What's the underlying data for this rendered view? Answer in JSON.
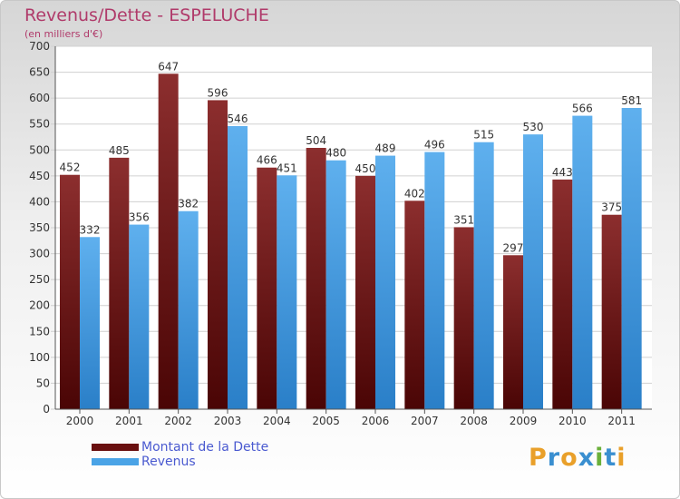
{
  "chart_data": {
    "type": "bar",
    "title": "Revenus/Dette - ESPELUCHE",
    "subtitle": "(en milliers d'€)",
    "categories": [
      "2000",
      "2001",
      "2002",
      "2003",
      "2004",
      "2005",
      "2006",
      "2007",
      "2008",
      "2009",
      "2010",
      "2011"
    ],
    "series": [
      {
        "name": "Montant de la Dette",
        "color": "#7a1a1a",
        "values": [
          452,
          485,
          647,
          596,
          466,
          504,
          450,
          402,
          351,
          297,
          443,
          375
        ]
      },
      {
        "name": "Revenus",
        "color": "#4aa3e6",
        "values": [
          332,
          356,
          382,
          546,
          451,
          480,
          489,
          496,
          515,
          530,
          566,
          581
        ]
      }
    ],
    "ylim": [
      0,
      700
    ],
    "yticks": [
      0,
      50,
      100,
      150,
      200,
      250,
      300,
      350,
      400,
      450,
      500,
      550,
      600,
      650,
      700
    ],
    "grid": true,
    "legend_position": "bottom-left"
  },
  "logo": {
    "text": "Proxiti"
  }
}
